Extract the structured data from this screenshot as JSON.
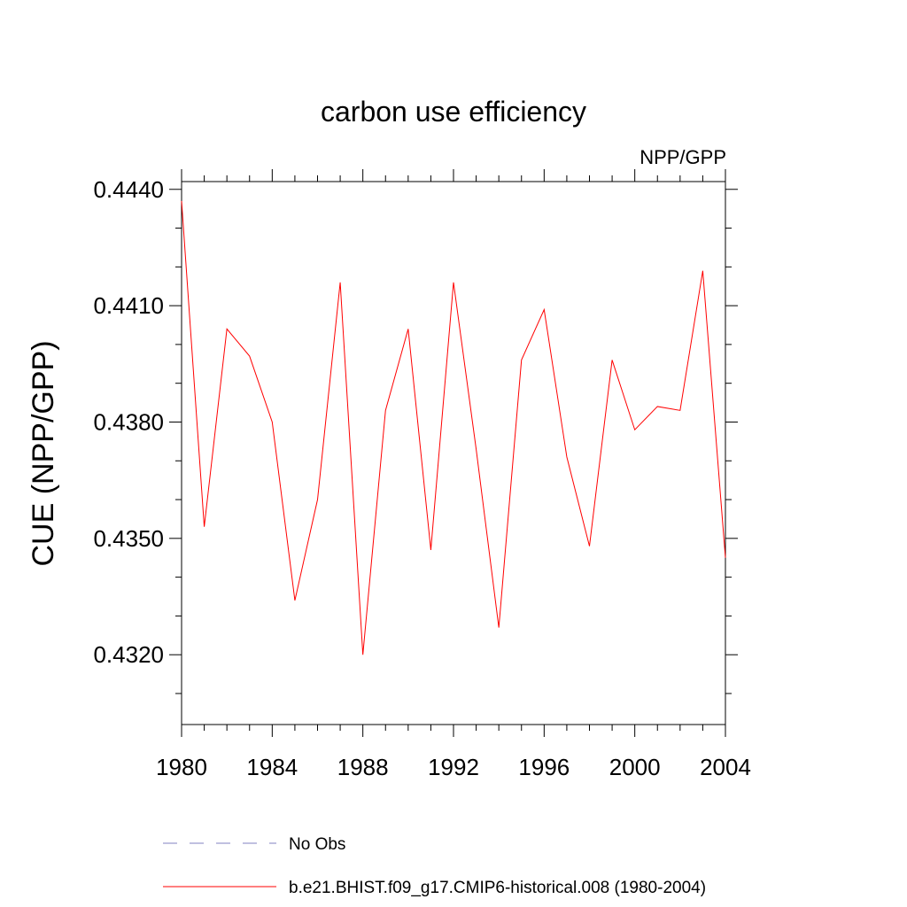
{
  "chart_data": {
    "type": "line",
    "title": "carbon use efficiency",
    "subtitle_right": "NPP/GPP",
    "ylabel": "CUE  (NPP/GPP)",
    "xlabel": "",
    "xlim": [
      1980,
      2004
    ],
    "ylim": [
      0.4302,
      0.4442
    ],
    "x_ticks": [
      1980,
      1984,
      1988,
      1992,
      1996,
      2000,
      2004
    ],
    "x_tick_labels": [
      "1980",
      "1984",
      "1988",
      "1992",
      "1996",
      "2000",
      "2004"
    ],
    "y_ticks": [
      0.432,
      0.435,
      0.438,
      0.441,
      0.444
    ],
    "y_tick_labels": [
      "0.4320",
      "0.4350",
      "0.4380",
      "0.4410",
      "0.4440"
    ],
    "y_minor_step": 0.001,
    "x_minor_step": 1,
    "grid": false,
    "legend_position": "bottom",
    "series": [
      {
        "name": "b.e21.BHIST.f09_g17.CMIP6-historical.008 (1980-2004)",
        "color": "#ff0000",
        "style": "solid",
        "x": [
          1980,
          1981,
          1982,
          1983,
          1984,
          1985,
          1986,
          1987,
          1988,
          1989,
          1990,
          1991,
          1992,
          1993,
          1994,
          1995,
          1996,
          1997,
          1998,
          1999,
          2000,
          2001,
          2002,
          2003,
          2004
        ],
        "values": [
          0.4437,
          0.4353,
          0.4404,
          0.4397,
          0.438,
          0.4334,
          0.436,
          0.4416,
          0.432,
          0.4383,
          0.4404,
          0.4347,
          0.4416,
          0.4373,
          0.4327,
          0.4396,
          0.4409,
          0.4371,
          0.4348,
          0.4396,
          0.4378,
          0.4384,
          0.4383,
          0.4419,
          0.4345
        ]
      }
    ],
    "legend": [
      {
        "label": "No Obs",
        "color": "#8080c0",
        "style": "dashed"
      },
      {
        "label": "b.e21.BHIST.f09_g17.CMIP6-historical.008 (1980-2004)",
        "color": "#ff0000",
        "style": "solid"
      }
    ]
  }
}
